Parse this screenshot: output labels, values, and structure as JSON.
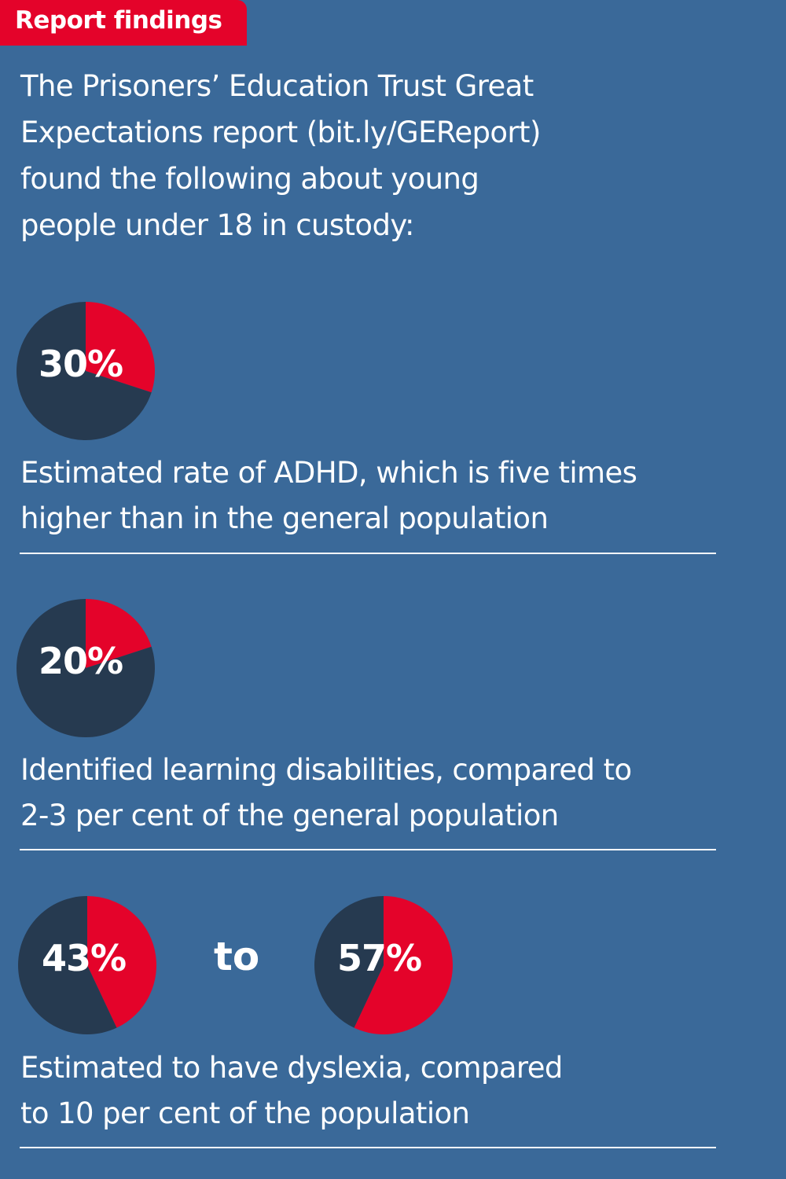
{
  "header": {
    "tag": "Report findings"
  },
  "intro": {
    "lines": [
      "The Prisoners’ Education Trust Great",
      "Expectations report (bit.ly/GEReport)",
      "found the following about young",
      "people under 18 in custody:"
    ]
  },
  "colors": {
    "background": "#3a6999",
    "highlight": "#e4032a",
    "remainder": "#263a50"
  },
  "chart_data": [
    {
      "type": "pie",
      "label": "30%",
      "values": [
        30,
        70
      ],
      "slices": [
        "share",
        "remainder"
      ],
      "description": [
        "Estimated rate of ADHD, which is five times",
        "higher than in the general population"
      ]
    },
    {
      "type": "pie",
      "label": "20%",
      "values": [
        20,
        80
      ],
      "slices": [
        "share",
        "remainder"
      ],
      "description": [
        "Identified learning disabilities, compared to",
        "2-3 per cent of the general population"
      ]
    },
    {
      "type": "pie",
      "label": "43%",
      "values": [
        43,
        57
      ],
      "slices": [
        "share",
        "remainder"
      ]
    },
    {
      "type": "pie",
      "label": "57%",
      "values": [
        57,
        43
      ],
      "slices": [
        "share",
        "remainder"
      ]
    }
  ],
  "range_connector": "to",
  "dyslexia": {
    "description": [
      "Estimated to have dyslexia, compared",
      "to 10 per cent of the population"
    ]
  }
}
